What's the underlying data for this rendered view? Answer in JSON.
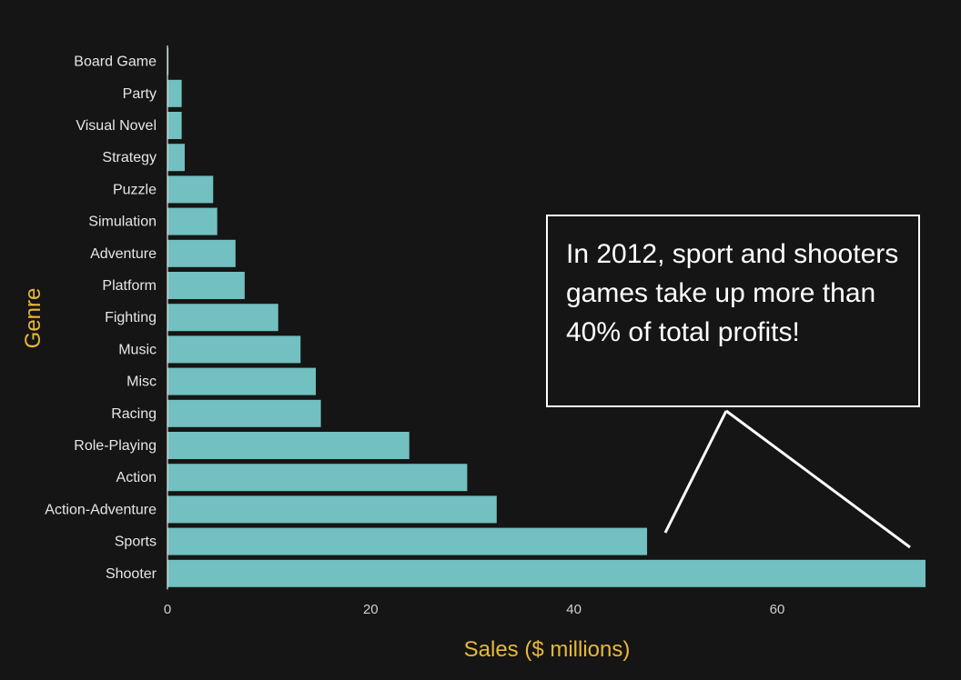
{
  "chart_data": {
    "type": "bar",
    "orientation": "horizontal",
    "categories": [
      "Board Game",
      "Party",
      "Visual Novel",
      "Strategy",
      "Puzzle",
      "Simulation",
      "Adventure",
      "Platform",
      "Fighting",
      "Music",
      "Misc",
      "Racing",
      "Role-Playing",
      "Action",
      "Action-Adventure",
      "Sports",
      "Shooter"
    ],
    "values": [
      0.1,
      1.4,
      1.4,
      1.7,
      4.5,
      4.9,
      6.7,
      7.6,
      10.9,
      13.1,
      14.6,
      15.1,
      23.8,
      29.5,
      32.4,
      47.2,
      74.6
    ],
    "xlabel": "Sales ($ millions)",
    "ylabel": "Genre",
    "xlim": [
      0,
      74.6
    ],
    "xticks": [
      0,
      20,
      40,
      60
    ],
    "grid": false,
    "colors": {
      "bar": "#72c0c0",
      "background": "#151515",
      "axis_title": "#e8b83a",
      "annotation": "#ffffff"
    },
    "annotation": {
      "text": "In 2012, sport and shooters games take up more than 40% of total profits!"
    }
  }
}
